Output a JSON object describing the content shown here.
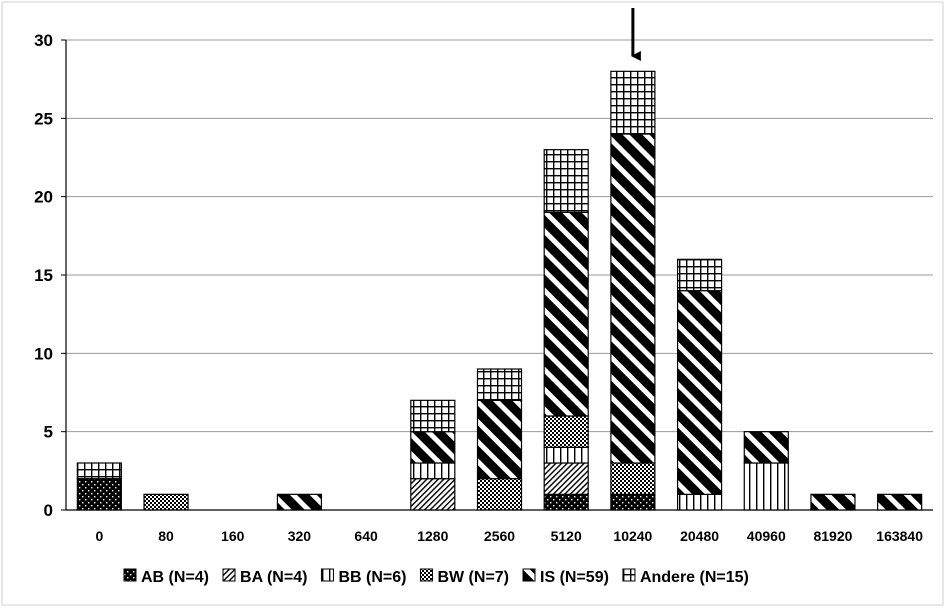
{
  "chart_data": {
    "type": "bar",
    "stacked": true,
    "categories": [
      "0",
      "80",
      "160",
      "320",
      "640",
      "1280",
      "2560",
      "5120",
      "10240",
      "20480",
      "40960",
      "81920",
      "163840"
    ],
    "series": [
      {
        "name": "AB (N=4)",
        "pattern": "dots",
        "values": [
          2,
          0,
          0,
          0,
          0,
          0,
          0,
          1,
          1,
          0,
          0,
          0,
          0
        ]
      },
      {
        "name": "BA (N=4)",
        "pattern": "thin-diagonal",
        "values": [
          0,
          0,
          0,
          0,
          0,
          2,
          0,
          2,
          0,
          0,
          0,
          0,
          0
        ]
      },
      {
        "name": "BB (N=6)",
        "pattern": "vertical",
        "values": [
          0,
          0,
          0,
          0,
          0,
          1,
          0,
          1,
          0,
          1,
          3,
          0,
          0
        ]
      },
      {
        "name": "BW (N=7)",
        "pattern": "checker",
        "values": [
          0,
          1,
          0,
          0,
          0,
          0,
          2,
          2,
          2,
          0,
          0,
          0,
          0
        ]
      },
      {
        "name": "IS (N=59)",
        "pattern": "wide-diagonal",
        "values": [
          0,
          0,
          0,
          1,
          0,
          2,
          5,
          13,
          21,
          13,
          2,
          1,
          1
        ]
      },
      {
        "name": "Andere (N=15)",
        "pattern": "grid",
        "values": [
          1,
          0,
          0,
          0,
          0,
          2,
          2,
          4,
          4,
          2,
          0,
          0,
          0
        ]
      }
    ],
    "ylim": [
      0,
      30
    ],
    "yticks": [
      "0",
      "5",
      "10",
      "15",
      "20",
      "25",
      "30"
    ],
    "grid": "horizontal",
    "legend": "bottom",
    "annotation": {
      "type": "arrow",
      "category": "10240"
    }
  }
}
